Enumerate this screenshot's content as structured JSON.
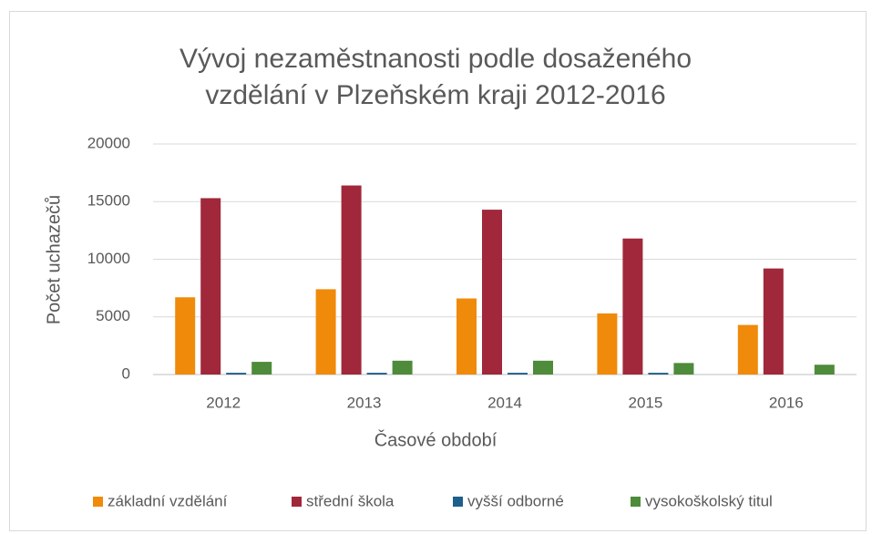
{
  "chart_data": {
    "type": "bar",
    "title": [
      "Vývoj nezaměstnanosti podle dosaženého",
      "vzdělání v Plzeňském kraji 2012-2016"
    ],
    "x_label": "Časové období",
    "y_label": "Počet uchazečů",
    "categories": [
      "2012",
      "2013",
      "2014",
      "2015",
      "2016"
    ],
    "series": [
      {
        "name": "základní vzdělání",
        "color": "#f08a0a",
        "values": [
          6700,
          7400,
          6600,
          5300,
          4300
        ]
      },
      {
        "name": "střední škola",
        "color": "#a0283a",
        "values": [
          15300,
          16400,
          14300,
          11800,
          9200
        ]
      },
      {
        "name": "vyšší odborné",
        "color": "#1f5f8b",
        "values": [
          150,
          150,
          150,
          150,
          0
        ]
      },
      {
        "name": "vysokoškolský titul",
        "color": "#4e8b3a",
        "values": [
          1100,
          1200,
          1200,
          1000,
          850
        ]
      }
    ],
    "ylim": [
      0,
      20000
    ],
    "yticks": [
      0,
      5000,
      10000,
      15000,
      20000
    ],
    "grid": true,
    "legend": "bottom"
  }
}
